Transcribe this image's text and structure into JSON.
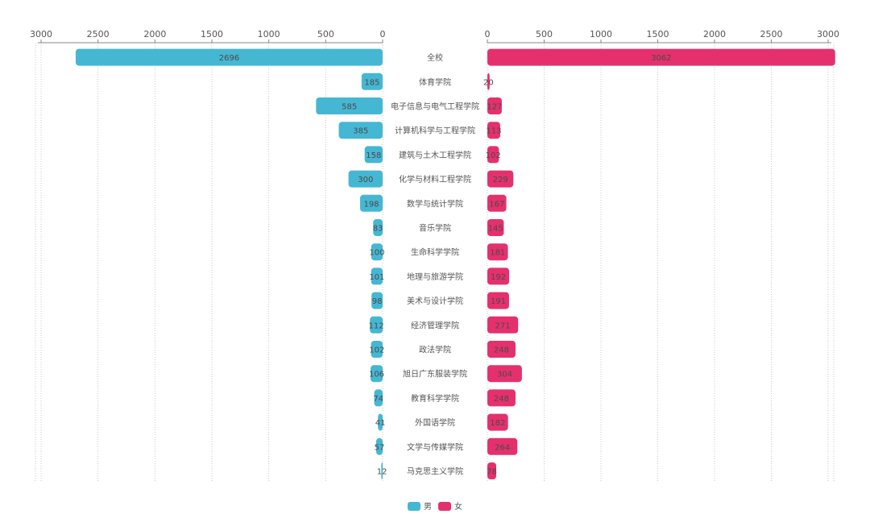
{
  "chart_data": {
    "type": "bar",
    "orientation": "horizontal-butterfly",
    "categories": [
      "全校",
      "体育学院",
      "电子信息与电气工程学院",
      "计算机科学与工程学院",
      "建筑与土木工程学院",
      "化学与材料工程学院",
      "数学与统计学院",
      "音乐学院",
      "生命科学学院",
      "地理与旅游学院",
      "美术与设计学院",
      "经济管理学院",
      "政法学院",
      "旭日广东服装学院",
      "教育科学学院",
      "外国语学院",
      "文学与传媒学院",
      "马克思主义学院"
    ],
    "series": [
      {
        "name": "男",
        "color": "#45b7d3",
        "values": [
          2696,
          185,
          585,
          385,
          158,
          300,
          198,
          83,
          100,
          101,
          98,
          112,
          102,
          106,
          74,
          41,
          57,
          12
        ],
        "value_labels": [
          "2696",
          "185",
          "585",
          "385",
          "158",
          "300",
          "198",
          "83",
          "100",
          "101",
          "98",
          "112",
          "102",
          "106",
          "74",
          "41",
          "57",
          "12"
        ],
        "axis_ticks": [
          "3000",
          "2500",
          "2000",
          "1500",
          "1000",
          "500",
          "0"
        ],
        "xlim": [
          0,
          3000
        ]
      },
      {
        "name": "女",
        "color": "#e5306e",
        "values": [
          3062,
          20,
          127,
          113,
          102,
          229,
          167,
          145,
          181,
          192,
          191,
          271,
          248,
          304,
          248,
          182,
          264,
          78
        ],
        "value_labels": [
          "3062",
          "20",
          "127",
          "113",
          "102",
          "229",
          "167",
          "145",
          "181",
          "192",
          "191",
          "271",
          "248",
          "304",
          "248",
          "182",
          "264",
          "78"
        ],
        "axis_ticks": [
          "0",
          "500",
          "1000",
          "1500",
          "2000",
          "2500",
          "3000"
        ],
        "xlim": [
          0,
          3000
        ]
      }
    ],
    "grid": true,
    "legend": "bottom-center"
  }
}
